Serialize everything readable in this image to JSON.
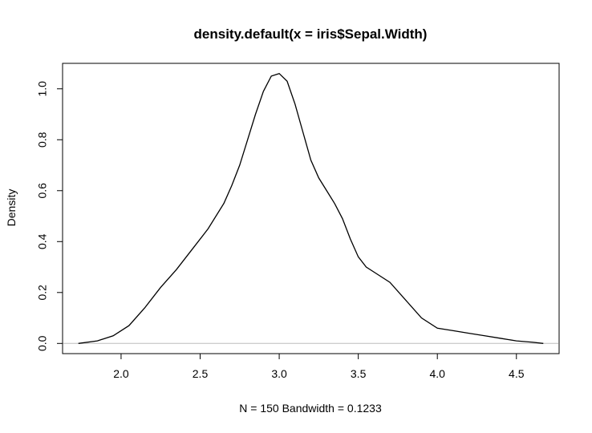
{
  "chart_data": {
    "type": "line",
    "title": "density.default(x = iris$Sepal.Width)",
    "xlabel": "N = 150   Bandwidth = 0.1233",
    "ylabel": "Density",
    "xlim": [
      1.63,
      4.77
    ],
    "ylim": [
      -0.04,
      1.1
    ],
    "x_ticks": [
      2.0,
      2.5,
      3.0,
      3.5,
      4.0,
      4.5
    ],
    "x_tick_labels": [
      "2.0",
      "2.5",
      "3.0",
      "3.5",
      "4.0",
      "4.5"
    ],
    "y_ticks": [
      0.0,
      0.2,
      0.4,
      0.6,
      0.8,
      1.0
    ],
    "y_tick_labels": [
      "0.0",
      "0.2",
      "0.4",
      "0.6",
      "0.8",
      "1.0"
    ],
    "grid": false,
    "zero_line": true,
    "zero_line_color": "#bebebe",
    "line_color": "#000000",
    "series": [
      {
        "x": [
          1.73,
          1.85,
          1.95,
          2.05,
          2.15,
          2.25,
          2.35,
          2.45,
          2.55,
          2.65,
          2.7,
          2.75,
          2.8,
          2.85,
          2.9,
          2.95,
          3.0,
          3.05,
          3.1,
          3.15,
          3.2,
          3.25,
          3.3,
          3.35,
          3.4,
          3.45,
          3.5,
          3.55,
          3.6,
          3.7,
          3.8,
          3.9,
          4.0,
          4.1,
          4.2,
          4.3,
          4.4,
          4.5,
          4.6,
          4.67
        ],
        "y": [
          0.0,
          0.01,
          0.03,
          0.07,
          0.14,
          0.22,
          0.29,
          0.37,
          0.45,
          0.55,
          0.62,
          0.7,
          0.8,
          0.9,
          0.99,
          1.05,
          1.06,
          1.03,
          0.94,
          0.83,
          0.72,
          0.65,
          0.6,
          0.55,
          0.49,
          0.41,
          0.34,
          0.3,
          0.28,
          0.24,
          0.17,
          0.1,
          0.06,
          0.05,
          0.04,
          0.03,
          0.02,
          0.01,
          0.005,
          0.0
        ]
      }
    ]
  }
}
